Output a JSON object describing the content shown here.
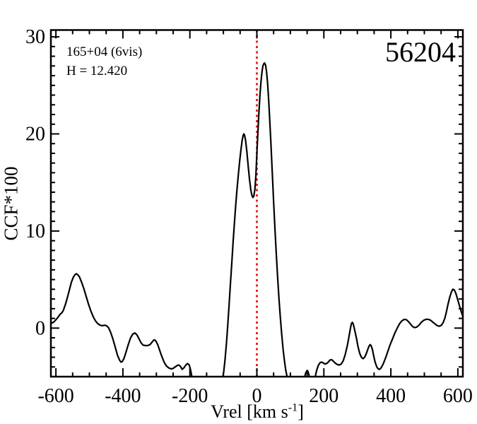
{
  "figure": {
    "background": "#ffffff",
    "frame_color": "#000000"
  },
  "annotations": {
    "field": "165+04 (6vis)",
    "h_magnitude": "H = 12.420",
    "plot_id": "56204"
  },
  "axes": {
    "x": {
      "title_main": "Vrel [km s",
      "title_sup": "-1",
      "title_suffix": "]"
    },
    "y": {
      "title": "CCF*100"
    }
  },
  "chart_data": {
    "type": "line",
    "title": "",
    "xlabel": "Vrel [km s-1]",
    "ylabel": "CCF*100",
    "xlim": [
      -615,
      615
    ],
    "ylim": [
      -5,
      30.7
    ],
    "grid": false,
    "x_major_ticks": [
      -600,
      -400,
      -200,
      0,
      200,
      400,
      600
    ],
    "x_tick_labels": [
      "-600",
      "-400",
      "-200",
      "0",
      "200",
      "400",
      "600"
    ],
    "x_minor_step": 50,
    "y_major_ticks": [
      0,
      10,
      20,
      30
    ],
    "y_tick_labels": [
      "0",
      "10",
      "20",
      "30"
    ],
    "y_minor_step": 1,
    "reference_line": {
      "x": 0,
      "color": "#ee0000",
      "style": "dotted"
    },
    "curve_color": "#000000",
    "series": [
      {
        "name": "CCF",
        "color": "#000000",
        "points": [
          [
            -615,
            0.5
          ],
          [
            -610,
            0.55
          ],
          [
            -604,
            0.7
          ],
          [
            -598,
            0.95
          ],
          [
            -592,
            1.2
          ],
          [
            -587,
            1.45
          ],
          [
            -583,
            1.55
          ],
          [
            -578,
            1.8
          ],
          [
            -572,
            2.4
          ],
          [
            -566,
            3.1
          ],
          [
            -560,
            3.9
          ],
          [
            -554,
            4.7
          ],
          [
            -548,
            5.25
          ],
          [
            -543,
            5.5
          ],
          [
            -539,
            5.6
          ],
          [
            -535,
            5.5
          ],
          [
            -530,
            5.3
          ],
          [
            -524,
            4.8
          ],
          [
            -517,
            4.1
          ],
          [
            -510,
            3.3
          ],
          [
            -503,
            2.5
          ],
          [
            -496,
            1.8
          ],
          [
            -489,
            1.2
          ],
          [
            -482,
            0.75
          ],
          [
            -475,
            0.45
          ],
          [
            -468,
            0.3
          ],
          [
            -461,
            0.25
          ],
          [
            -455,
            0.3
          ],
          [
            -449,
            0.25
          ],
          [
            -443,
            0.05
          ],
          [
            -437,
            -0.4
          ],
          [
            -430,
            -1.1
          ],
          [
            -423,
            -1.95
          ],
          [
            -416,
            -2.8
          ],
          [
            -410,
            -3.3
          ],
          [
            -406,
            -3.5
          ],
          [
            -402,
            -3.45
          ],
          [
            -397,
            -3.15
          ],
          [
            -391,
            -2.5
          ],
          [
            -384,
            -1.7
          ],
          [
            -377,
            -1.0
          ],
          [
            -370,
            -0.6
          ],
          [
            -364,
            -0.5
          ],
          [
            -358,
            -0.7
          ],
          [
            -352,
            -1.1
          ],
          [
            -346,
            -1.5
          ],
          [
            -340,
            -1.75
          ],
          [
            -333,
            -1.8
          ],
          [
            -326,
            -1.8
          ],
          [
            -319,
            -1.7
          ],
          [
            -313,
            -1.45
          ],
          [
            -307,
            -1.2
          ],
          [
            -302,
            -1.3
          ],
          [
            -296,
            -1.7
          ],
          [
            -290,
            -2.3
          ],
          [
            -284,
            -2.9
          ],
          [
            -277,
            -3.5
          ],
          [
            -270,
            -3.9
          ],
          [
            -263,
            -4.1
          ],
          [
            -256,
            -4.2
          ],
          [
            -250,
            -4.15
          ],
          [
            -244,
            -4.0
          ],
          [
            -238,
            -3.85
          ],
          [
            -233,
            -3.8
          ],
          [
            -228,
            -3.95
          ],
          [
            -223,
            -4.25
          ],
          [
            -218,
            -4.1
          ],
          [
            -212,
            -3.8
          ],
          [
            -207,
            -3.65
          ],
          [
            -202,
            -3.8
          ],
          [
            -198,
            -4.3
          ],
          [
            -194,
            -5.0
          ],
          [
            -189,
            -5.9
          ],
          [
            -184,
            -6.6
          ],
          [
            -175,
            -7.2
          ],
          [
            -160,
            -7.5
          ],
          [
            -145,
            -7.5
          ],
          [
            -130,
            -7.2
          ],
          [
            -118,
            -6.8
          ],
          [
            -110,
            -6.3
          ],
          [
            -104,
            -5.6
          ],
          [
            -99,
            -4.5
          ],
          [
            -95,
            -3.2
          ],
          [
            -91,
            -1.6
          ],
          [
            -87,
            0.3
          ],
          [
            -83,
            2.4
          ],
          [
            -79,
            4.6
          ],
          [
            -75,
            6.7
          ],
          [
            -71,
            8.8
          ],
          [
            -67,
            10.8
          ],
          [
            -63,
            12.7
          ],
          [
            -59,
            14.4
          ],
          [
            -55,
            15.9
          ],
          [
            -51,
            17.3
          ],
          [
            -47,
            18.5
          ],
          [
            -44,
            19.3
          ],
          [
            -41,
            19.85
          ],
          [
            -39,
            20.0
          ],
          [
            -37,
            19.9
          ],
          [
            -34,
            19.4
          ],
          [
            -30,
            18.2
          ],
          [
            -26,
            16.7
          ],
          [
            -22,
            15.3
          ],
          [
            -18,
            14.2
          ],
          [
            -15,
            13.7
          ],
          [
            -12,
            13.45
          ],
          [
            -9,
            13.6
          ],
          [
            -6,
            14.3
          ],
          [
            -3,
            15.7
          ],
          [
            0,
            18.0
          ],
          [
            3,
            20.1
          ],
          [
            6,
            22.1
          ],
          [
            9,
            23.9
          ],
          [
            12,
            25.3
          ],
          [
            15,
            26.3
          ],
          [
            18,
            27.0
          ],
          [
            21,
            27.25
          ],
          [
            23,
            27.3
          ],
          [
            26,
            27.1
          ],
          [
            29,
            26.4
          ],
          [
            32,
            25.2
          ],
          [
            35,
            23.6
          ],
          [
            38,
            21.7
          ],
          [
            42,
            19.0
          ],
          [
            46,
            16.0
          ],
          [
            50,
            13.0
          ],
          [
            54,
            10.2
          ],
          [
            58,
            7.6
          ],
          [
            62,
            5.2
          ],
          [
            66,
            3.0
          ],
          [
            70,
            1.1
          ],
          [
            74,
            -0.6
          ],
          [
            78,
            -2.1
          ],
          [
            82,
            -3.3
          ],
          [
            86,
            -4.3
          ],
          [
            90,
            -5.0
          ],
          [
            94,
            -5.8
          ],
          [
            100,
            -6.8
          ],
          [
            110,
            -7.5
          ],
          [
            122,
            -7.5
          ],
          [
            131,
            -6.9
          ],
          [
            137,
            -6.0
          ],
          [
            142,
            -5.1
          ],
          [
            146,
            -4.6
          ],
          [
            150,
            -4.35
          ],
          [
            153,
            -4.5
          ],
          [
            156,
            -4.9
          ],
          [
            159,
            -5.5
          ],
          [
            163,
            -6.2
          ],
          [
            167,
            -6.3
          ],
          [
            171,
            -5.7
          ],
          [
            175,
            -4.9
          ],
          [
            179,
            -4.3
          ],
          [
            184,
            -3.8
          ],
          [
            189,
            -3.55
          ],
          [
            194,
            -3.5
          ],
          [
            199,
            -3.6
          ],
          [
            203,
            -3.7
          ],
          [
            208,
            -3.65
          ],
          [
            213,
            -3.5
          ],
          [
            218,
            -3.3
          ],
          [
            223,
            -3.25
          ],
          [
            228,
            -3.4
          ],
          [
            234,
            -3.6
          ],
          [
            240,
            -3.75
          ],
          [
            246,
            -3.8
          ],
          [
            252,
            -3.7
          ],
          [
            258,
            -3.35
          ],
          [
            264,
            -2.7
          ],
          [
            270,
            -1.8
          ],
          [
            275,
            -0.9
          ],
          [
            279,
            -0.1
          ],
          [
            282,
            0.45
          ],
          [
            285,
            0.6
          ],
          [
            288,
            0.4
          ],
          [
            292,
            -0.2
          ],
          [
            297,
            -1.0
          ],
          [
            302,
            -1.9
          ],
          [
            307,
            -2.6
          ],
          [
            312,
            -3.0
          ],
          [
            317,
            -3.15
          ],
          [
            322,
            -3.0
          ],
          [
            327,
            -2.6
          ],
          [
            331,
            -2.2
          ],
          [
            335,
            -1.85
          ],
          [
            338,
            -1.7
          ],
          [
            341,
            -1.8
          ],
          [
            345,
            -2.2
          ],
          [
            349,
            -2.9
          ],
          [
            353,
            -3.5
          ],
          [
            358,
            -4.0
          ],
          [
            362,
            -4.2
          ],
          [
            366,
            -4.25
          ],
          [
            371,
            -4.1
          ],
          [
            377,
            -3.7
          ],
          [
            384,
            -3.1
          ],
          [
            391,
            -2.4
          ],
          [
            398,
            -1.7
          ],
          [
            405,
            -1.1
          ],
          [
            412,
            -0.5
          ],
          [
            419,
            0.0
          ],
          [
            426,
            0.45
          ],
          [
            433,
            0.75
          ],
          [
            440,
            0.9
          ],
          [
            447,
            0.85
          ],
          [
            453,
            0.65
          ],
          [
            459,
            0.4
          ],
          [
            465,
            0.15
          ],
          [
            471,
            0.05
          ],
          [
            477,
            0.1
          ],
          [
            484,
            0.3
          ],
          [
            491,
            0.6
          ],
          [
            498,
            0.8
          ],
          [
            505,
            0.9
          ],
          [
            512,
            0.9
          ],
          [
            519,
            0.8
          ],
          [
            526,
            0.6
          ],
          [
            533,
            0.4
          ],
          [
            539,
            0.25
          ],
          [
            545,
            0.2
          ],
          [
            551,
            0.3
          ],
          [
            556,
            0.55
          ],
          [
            561,
            1.0
          ],
          [
            566,
            1.7
          ],
          [
            571,
            2.5
          ],
          [
            576,
            3.2
          ],
          [
            581,
            3.75
          ],
          [
            585,
            4.0
          ],
          [
            589,
            3.95
          ],
          [
            594,
            3.6
          ],
          [
            599,
            3.0
          ],
          [
            604,
            2.4
          ],
          [
            609,
            1.8
          ],
          [
            615,
            1.2
          ]
        ]
      }
    ]
  }
}
